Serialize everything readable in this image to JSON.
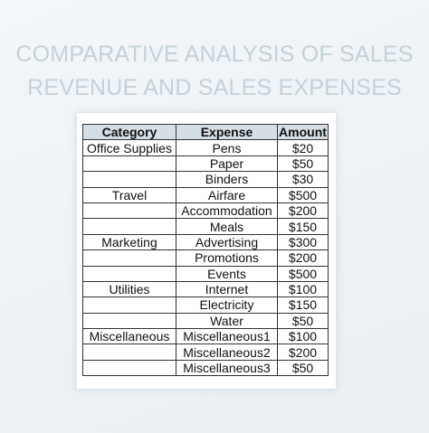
{
  "title": {
    "line1": "COMPARATIVE ANALYSIS OF SALES",
    "line2": "REVENUE AND SALES EXPENSES"
  },
  "table": {
    "headers": [
      "Category",
      "Expense",
      "Amount"
    ],
    "rows": [
      {
        "category": "Office Supplies",
        "expense": "Pens",
        "amount": "$20"
      },
      {
        "category": "",
        "expense": "Paper",
        "amount": "$50"
      },
      {
        "category": "",
        "expense": "Binders",
        "amount": "$30"
      },
      {
        "category": "Travel",
        "expense": "Airfare",
        "amount": "$500"
      },
      {
        "category": "",
        "expense": "Accommodation",
        "amount": "$200"
      },
      {
        "category": "",
        "expense": "Meals",
        "amount": "$150"
      },
      {
        "category": "Marketing",
        "expense": "Advertising",
        "amount": "$300"
      },
      {
        "category": "",
        "expense": "Promotions",
        "amount": "$200"
      },
      {
        "category": "",
        "expense": "Events",
        "amount": "$500"
      },
      {
        "category": "Utilities",
        "expense": "Internet",
        "amount": "$100"
      },
      {
        "category": "",
        "expense": "Electricity",
        "amount": "$150"
      },
      {
        "category": "",
        "expense": "Water",
        "amount": "$50"
      },
      {
        "category": "Miscellaneous",
        "expense": "Miscellaneous1",
        "amount": "$100"
      },
      {
        "category": "",
        "expense": "Miscellaneous2",
        "amount": "$200"
      },
      {
        "category": "",
        "expense": "Miscellaneous3",
        "amount": "$50"
      }
    ]
  }
}
